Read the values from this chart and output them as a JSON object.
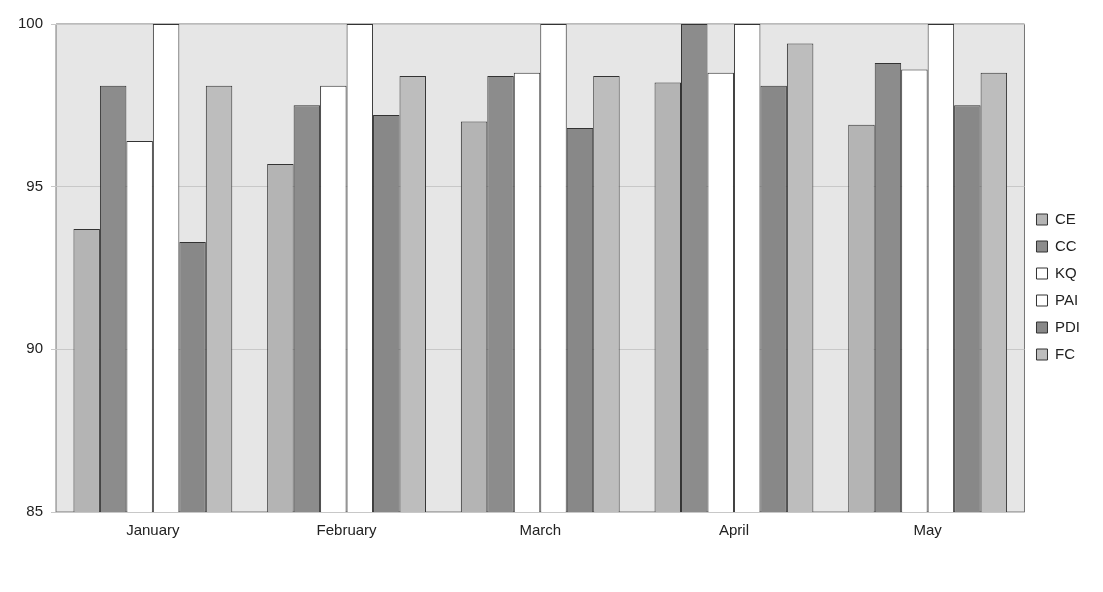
{
  "chart_data": {
    "type": "bar",
    "categories": [
      "January",
      "February",
      "March",
      "April",
      "May"
    ],
    "series": [
      {
        "name": "CE",
        "color": "#b4b4b4",
        "values": [
          93.7,
          95.7,
          97.0,
          98.2,
          96.9
        ]
      },
      {
        "name": "CC",
        "color": "#8c8c8c",
        "values": [
          98.1,
          97.5,
          98.4,
          100,
          98.8
        ]
      },
      {
        "name": "KQ",
        "color": "#ffffff",
        "values": [
          96.4,
          98.1,
          98.5,
          98.5,
          98.6
        ]
      },
      {
        "name": "PAI",
        "color": "#ffffff",
        "values": [
          100,
          100,
          100,
          100,
          100
        ]
      },
      {
        "name": "PDI",
        "color": "#888888",
        "values": [
          93.3,
          97.2,
          96.8,
          98.1,
          97.5
        ]
      },
      {
        "name": "FC",
        "color": "#bdbdbd",
        "values": [
          98.1,
          98.4,
          98.4,
          99.4,
          98.5
        ]
      }
    ],
    "ylim": [
      85,
      100
    ],
    "yticks": [
      85,
      90,
      95,
      100
    ],
    "grid": "y",
    "legend": "right"
  }
}
